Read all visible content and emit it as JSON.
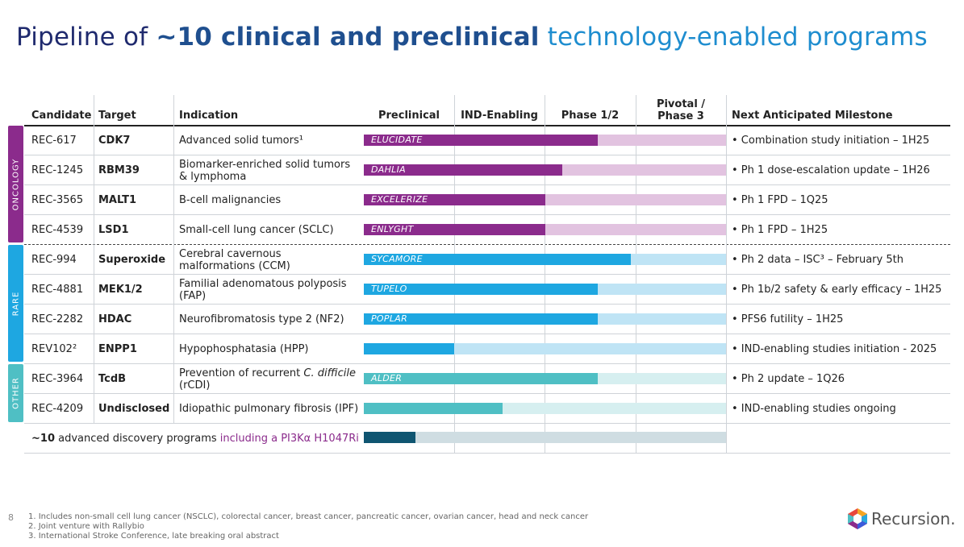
{
  "title": {
    "prefix": "Pipeline of ",
    "bold": "~10 clinical and preclinical",
    "tail": " technology-enabled programs"
  },
  "headers": {
    "candidate": "Candidate",
    "target": "Target",
    "indication": "Indication",
    "preclinical": "Preclinical",
    "ind": "IND-Enabling",
    "phase12": "Phase 1/2",
    "pivotal": "Pivotal /",
    "phase3": "Phase 3",
    "milestone": "Next Anticipated Milestone"
  },
  "groups": {
    "oncology": "ONCOLOGY",
    "rare": "RARE",
    "other": "OTHER"
  },
  "colors": {
    "oncology": "#8b2b8c",
    "oncology_light": "#e2c3e0",
    "rare": "#1ea7e1",
    "rare_light": "#bfe4f5",
    "other": "#4fbfc4",
    "other_light": "#d6eff0",
    "discovery": "#0f5571",
    "discovery_light": "#cfdde2"
  },
  "rows": [
    {
      "candidate": "REC-617",
      "target": "CDK7",
      "indication": "Advanced solid tumors¹",
      "program": "ELUCIDATE",
      "progress": 0.645,
      "milestone": "• Combination study initiation – 1H25"
    },
    {
      "candidate": "REC-1245",
      "target": "RBM39",
      "indication": "Biomarker-enriched solid tumors & lymphoma",
      "program": "DAHLIA",
      "progress": 0.548,
      "milestone": "• Ph 1 dose-escalation update – 1H26"
    },
    {
      "candidate": "REC-3565",
      "target": "MALT1",
      "indication": "B-cell malignancies",
      "program": "EXCELERIZE",
      "progress": 0.5,
      "milestone": "• Ph 1 FPD – 1Q25"
    },
    {
      "candidate": "REC-4539",
      "target": "LSD1",
      "indication": "Small-cell lung cancer (SCLC)",
      "program": "ENLYGHT",
      "progress": 0.5,
      "milestone": "• Ph 1 FPD – 1H25"
    },
    {
      "candidate": "REC-994",
      "target": "Superoxide",
      "indication": "Cerebral cavernous malformations (CCM)",
      "program": "SYCAMORE",
      "progress": 0.738,
      "milestone": "• Ph 2 data – ISC³ – February 5th"
    },
    {
      "candidate": "REC-4881",
      "target": "MEK1/2",
      "indication": "Familial adenomatous polyposis (FAP)",
      "program": "TUPELO",
      "progress": 0.645,
      "milestone": "• Ph 1b/2 safety & early efficacy – 1H25"
    },
    {
      "candidate": "REC-2282",
      "target": "HDAC",
      "indication": "Neurofibromatosis type 2 (NF2)",
      "program": "POPLAR",
      "progress": 0.645,
      "milestone": "• PFS6 futility – 1H25"
    },
    {
      "candidate": "REV102²",
      "target": "ENPP1",
      "indication": "Hypophosphatasia (HPP)",
      "program": "",
      "progress": 0.25,
      "milestone": "• IND-enabling studies initiation - 2025"
    },
    {
      "candidate": "REC-3964",
      "target": "TcdB",
      "indication_a": "Prevention of recurrent ",
      "indication_i": "C. difficile",
      "indication_b": "(rCDI)",
      "program": "ALDER",
      "progress": 0.645,
      "milestone": "• Ph 2 update – 1Q26"
    },
    {
      "candidate": "REC-4209",
      "target": "Undisclosed",
      "indication": "Idiopathic pulmonary fibrosis (IPF)",
      "program": "",
      "progress": 0.382,
      "milestone": "• IND-enabling studies ongoing"
    }
  ],
  "discovery": {
    "bold": "~10",
    "text": " advanced discovery programs ",
    "highlight": "including a PI3Kα H1047Ri",
    "progress": 0.143
  },
  "footer": {
    "page": "8",
    "note1": "1. Includes non-small cell lung cancer (NSCLC), colorectal cancer, breast cancer, pancreatic cancer, ovarian cancer, head and neck cancer",
    "note2": "2. Joint venture with Rallybio",
    "note3": "3. International Stroke Conference, late breaking oral abstract",
    "logo": "Recursion."
  }
}
